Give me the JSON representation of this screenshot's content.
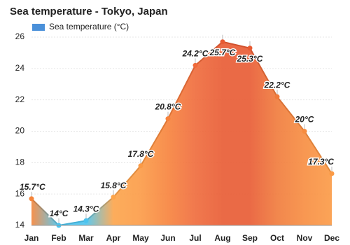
{
  "chart_data": {
    "type": "area",
    "title": "Sea temperature - Tokyo, Japan",
    "categories": [
      "Jan",
      "Feb",
      "Mar",
      "Apr",
      "May",
      "Jun",
      "Jul",
      "Aug",
      "Sep",
      "Oct",
      "Nov",
      "Dec"
    ],
    "series": [
      {
        "name": "Sea temperature (°C)",
        "color": "#4a90d9",
        "values": [
          15.7,
          14,
          14.3,
          15.8,
          17.8,
          20.8,
          24.2,
          25.7,
          25.3,
          22.2,
          20,
          17.3
        ],
        "value_labels": [
          "15.7°C",
          "14°C",
          "14.3°C",
          "15.8°C",
          "17.8°C",
          "20.8°C",
          "24.2°C",
          "25.7°C",
          "25.3°C",
          "22.2°C",
          "20°C",
          "17.3°C"
        ],
        "colors": [
          "#f5853a",
          "#4cc3ee",
          "#4cc3ee",
          "#fca44a",
          "#fb9a45",
          "#f7823b",
          "#ef6a3a",
          "#e85a32",
          "#e85a32",
          "#f07a3a",
          "#f78c3f",
          "#fb9a45"
        ],
        "label_colors": [
          "#b5500f",
          "#1b7ea6",
          "#1b7ea6",
          "#b5500f",
          "#a8420a",
          "#a8420a",
          "#a8420a",
          "#a8420a",
          "#a8420a",
          "#a8420a",
          "#a8420a",
          "#a8420a"
        ]
      }
    ],
    "ylim": [
      14,
      26
    ],
    "yticks": [
      14,
      16,
      18,
      20,
      22,
      24,
      26
    ],
    "grid": true
  }
}
